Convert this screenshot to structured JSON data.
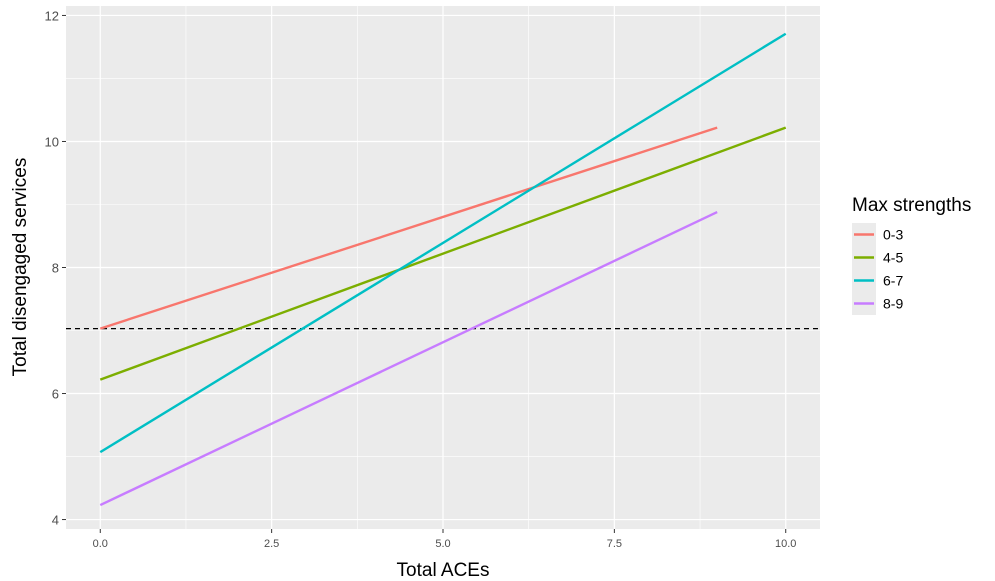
{
  "chart_data": {
    "type": "line",
    "title": "",
    "xlabel": "Total ACEs",
    "ylabel": "Total disengaged services",
    "xlim": [
      -0.5,
      10.5
    ],
    "ylim": [
      3.85,
      12.15
    ],
    "x_ticks": [
      0,
      2.5,
      5,
      7.5,
      10
    ],
    "x_tick_labels": [
      "0.0",
      "2.5",
      "5.0",
      "7.5",
      "10.0"
    ],
    "y_ticks": [
      4,
      6,
      8,
      10,
      12
    ],
    "y_tick_labels": [
      "4",
      "6",
      "8",
      "10",
      "12"
    ],
    "grid": true,
    "background": "#ebebeb",
    "reference_line": {
      "y": 7.03,
      "style": "dashed",
      "color": "#000000"
    },
    "legend": {
      "title": "Max strengths",
      "position": "right"
    },
    "series": [
      {
        "name": "0-3",
        "color": "#F8766D",
        "x": [
          0,
          9
        ],
        "y": [
          7.03,
          10.22
        ]
      },
      {
        "name": "4-5",
        "color": "#7CAE00",
        "x": [
          0,
          10
        ],
        "y": [
          6.22,
          10.22
        ]
      },
      {
        "name": "6-7",
        "color": "#00BFC4",
        "x": [
          0,
          10
        ],
        "y": [
          5.07,
          11.71
        ]
      },
      {
        "name": "8-9",
        "color": "#C77CFF",
        "x": [
          0,
          9
        ],
        "y": [
          4.23,
          8.88
        ]
      }
    ]
  }
}
